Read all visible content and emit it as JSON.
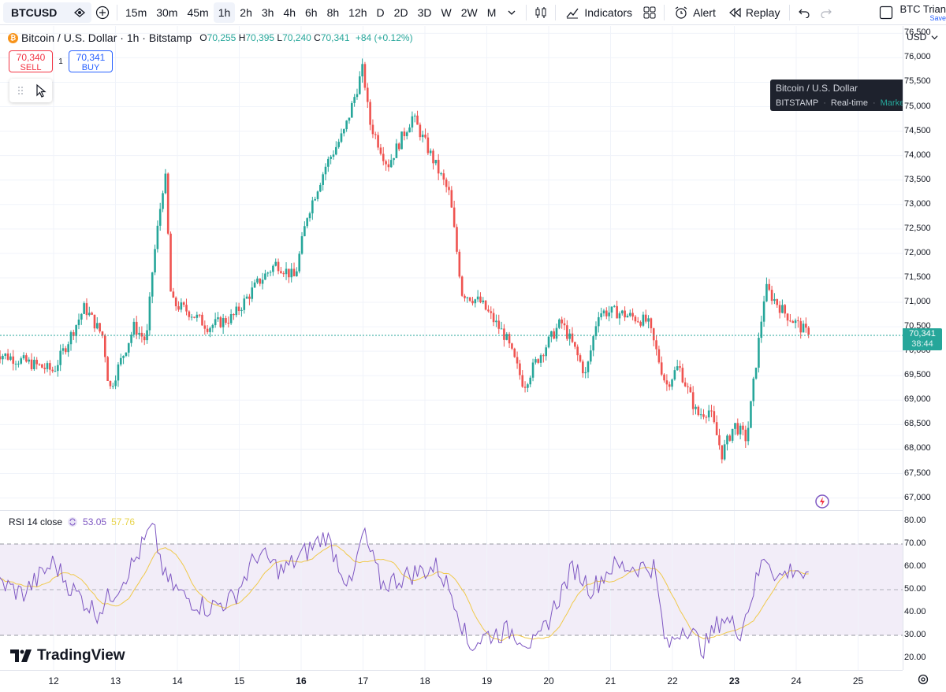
{
  "toolbar": {
    "symbol": "BTCUSD",
    "intervals": [
      "15m",
      "30m",
      "45m",
      "1h",
      "2h",
      "3h",
      "4h",
      "6h",
      "8h",
      "12h",
      "D",
      "2D",
      "3D",
      "W",
      "2W",
      "M"
    ],
    "active_interval": "1h",
    "indicators_label": "Indicators",
    "alert_label": "Alert",
    "replay_label": "Replay",
    "layout_name": "BTC Trian",
    "layout_save": "Save"
  },
  "legend": {
    "title": "Bitcoin / U.S. Dollar · 1h · Bitstamp",
    "o_label": "O",
    "o": "70,255",
    "h_label": "H",
    "h": "70,395",
    "l_label": "L",
    "l": "70,240",
    "c_label": "C",
    "c": "70,341",
    "change": "+84 (+0.12%)"
  },
  "trade": {
    "sell_price": "70,340",
    "sell_label": "SELL",
    "spread": "1",
    "buy_price": "70,341",
    "buy_label": "BUY"
  },
  "tooltip": {
    "title": "Bitcoin / U.S. Dollar",
    "exchange": "BITSTAMP",
    "feed": "Real-time",
    "status": "Market open"
  },
  "currency": "USD",
  "current_price": {
    "price": "70,341",
    "countdown": "38:44"
  },
  "rsi": {
    "label": "RSI 14 close",
    "value": "53.05",
    "ma": "57.76",
    "levels": [
      70,
      50,
      30
    ]
  },
  "branding": "TradingView",
  "colors": {
    "up": "#26a69a",
    "down": "#ef5350",
    "rsi_line": "#7e57c2",
    "rsi_ma": "#f0c94b",
    "rsi_band": "#ede7f6",
    "accent": "#2962ff"
  },
  "chart_data": {
    "type": "candlestick",
    "interval": "1h",
    "price_axis": {
      "ticks": [
        "76,500",
        "76,000",
        "75,500",
        "75,000",
        "74,500",
        "74,000",
        "73,500",
        "73,000",
        "72,500",
        "72,000",
        "71,500",
        "71,000",
        "70,500",
        "70,000",
        "69,500",
        "69,000",
        "68,500",
        "68,000",
        "67,500",
        "67,000"
      ],
      "range": [
        66800,
        76650
      ]
    },
    "time_axis": {
      "labels": [
        "12",
        "13",
        "14",
        "15",
        "16",
        "17",
        "18",
        "19",
        "20",
        "21",
        "22",
        "23",
        "24",
        "25"
      ],
      "bold": [
        "16",
        "23"
      ]
    },
    "close_path": [
      [
        11,
        70000
      ],
      [
        12,
        69600
      ],
      [
        12.5,
        70900
      ],
      [
        12.8,
        70300
      ],
      [
        12.9,
        69200
      ],
      [
        13.3,
        70500
      ],
      [
        13.5,
        70200
      ],
      [
        13.6,
        71700
      ],
      [
        13.8,
        73700
      ],
      [
        13.9,
        71000
      ],
      [
        14.2,
        70800
      ],
      [
        14.5,
        70500
      ],
      [
        14.9,
        70700
      ],
      [
        15.3,
        71400
      ],
      [
        15.6,
        71800
      ],
      [
        15.9,
        71500
      ],
      [
        16.1,
        72800
      ],
      [
        16.4,
        73800
      ],
      [
        16.7,
        74500
      ],
      [
        17.0,
        75800
      ],
      [
        17.1,
        74700
      ],
      [
        17.4,
        73800
      ],
      [
        17.8,
        74800
      ],
      [
        18.1,
        74000
      ],
      [
        18.4,
        73200
      ],
      [
        18.6,
        71200
      ],
      [
        18.9,
        71000
      ],
      [
        19.3,
        70300
      ],
      [
        19.6,
        69300
      ],
      [
        19.8,
        69800
      ],
      [
        20.2,
        70600
      ],
      [
        20.4,
        70100
      ],
      [
        20.6,
        69500
      ],
      [
        20.8,
        70800
      ],
      [
        21.1,
        70800
      ],
      [
        21.6,
        70600
      ],
      [
        21.9,
        69300
      ],
      [
        22.1,
        69700
      ],
      [
        22.4,
        68700
      ],
      [
        22.6,
        68800
      ],
      [
        22.8,
        67900
      ],
      [
        23.0,
        68500
      ],
      [
        23.2,
        68200
      ],
      [
        23.5,
        71300
      ],
      [
        23.8,
        70800
      ],
      [
        24.2,
        70341
      ]
    ],
    "rsi_path": [
      [
        11,
        55
      ],
      [
        11.5,
        48
      ],
      [
        12,
        62
      ],
      [
        12.3,
        50
      ],
      [
        12.7,
        40
      ],
      [
        13.0,
        50
      ],
      [
        13.3,
        62
      ],
      [
        13.6,
        78
      ],
      [
        13.8,
        55
      ],
      [
        14.1,
        47
      ],
      [
        14.5,
        42
      ],
      [
        14.9,
        46
      ],
      [
        15.3,
        66
      ],
      [
        15.7,
        58
      ],
      [
        16.1,
        67
      ],
      [
        16.4,
        74
      ],
      [
        16.8,
        50
      ],
      [
        17.0,
        75
      ],
      [
        17.3,
        52
      ],
      [
        17.8,
        57
      ],
      [
        18.2,
        60
      ],
      [
        18.5,
        45
      ],
      [
        18.7,
        25
      ],
      [
        19.0,
        30
      ],
      [
        19.4,
        32
      ],
      [
        19.8,
        25
      ],
      [
        20.1,
        43
      ],
      [
        20.4,
        60
      ],
      [
        20.7,
        50
      ],
      [
        21.0,
        60
      ],
      [
        21.4,
        60
      ],
      [
        21.7,
        60
      ],
      [
        21.9,
        24
      ],
      [
        22.2,
        35
      ],
      [
        22.5,
        24
      ],
      [
        22.8,
        38
      ],
      [
        23.1,
        32
      ],
      [
        23.5,
        66
      ],
      [
        23.7,
        55
      ],
      [
        24.0,
        60
      ],
      [
        24.2,
        53
      ]
    ]
  }
}
